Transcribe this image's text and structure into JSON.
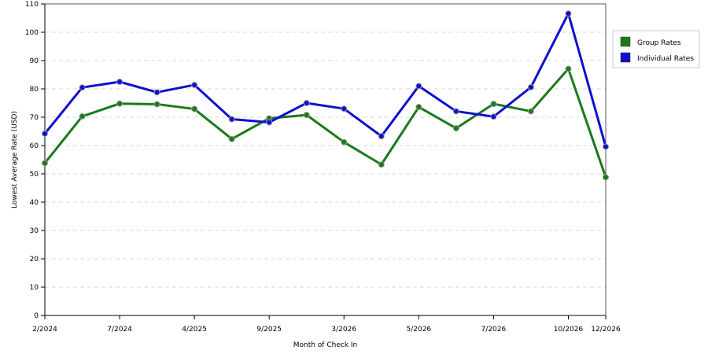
{
  "chart_data": {
    "type": "line",
    "title": "",
    "xlabel": "Month of Check In",
    "ylabel": "Lowest Average Rate (USD)",
    "ylim": [
      0,
      110
    ],
    "yticks": [
      0,
      10,
      20,
      30,
      40,
      50,
      60,
      70,
      80,
      90,
      100,
      110
    ],
    "x_count": 16,
    "xtick_labels": [
      {
        "index": 0,
        "label": "2/2024"
      },
      {
        "index": 2,
        "label": "7/2024"
      },
      {
        "index": 4,
        "label": "4/2025"
      },
      {
        "index": 6,
        "label": "9/2025"
      },
      {
        "index": 8,
        "label": "3/2026"
      },
      {
        "index": 10,
        "label": "5/2026"
      },
      {
        "index": 12,
        "label": "7/2026"
      },
      {
        "index": 14,
        "label": "10/2026"
      },
      {
        "index": 15,
        "label": "12/2026"
      }
    ],
    "grid": true,
    "legend_position": "right",
    "series": [
      {
        "name": "Group Rates",
        "color": "#1a7a1a",
        "values": [
          53.8,
          70.3,
          74.8,
          74.6,
          72.9,
          62.3,
          69.6,
          70.8,
          61.2,
          53.3,
          73.6,
          66.1,
          74.7,
          72.1,
          87.1,
          48.8
        ]
      },
      {
        "name": "Individual Rates",
        "color": "#1010cc",
        "values": [
          64.2,
          80.5,
          82.5,
          78.8,
          81.4,
          69.3,
          68.2,
          75.0,
          73.0,
          63.3,
          81.0,
          72.1,
          70.2,
          80.6,
          106.6,
          59.6
        ]
      }
    ]
  }
}
